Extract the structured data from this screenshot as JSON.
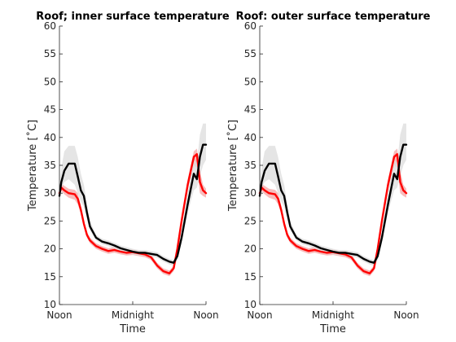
{
  "chart_data": [
    {
      "type": "line",
      "title": "Roof; inner surface temperature",
      "xlabel": "Time",
      "ylabel": "Temperature [˚C]",
      "ylim": [
        10,
        60
      ],
      "yticks": [
        10,
        15,
        20,
        25,
        30,
        35,
        40,
        45,
        50,
        55,
        60
      ],
      "xlim": [
        0,
        24
      ],
      "xticks": [
        {
          "x": 0,
          "label": "Noon"
        },
        {
          "x": 12,
          "label": "Midnight"
        },
        {
          "x": 24,
          "label": "Noon"
        }
      ],
      "grid": false,
      "legend": "none",
      "series": [
        {
          "color": "#ff0000",
          "band_color": "#f4a6a6",
          "x": [
            0,
            0.3,
            0.8,
            1.5,
            2.5,
            3.0,
            3.5,
            4.0,
            4.5,
            5.0,
            6.0,
            7.0,
            8.0,
            9.0,
            10.0,
            11.0,
            12.0,
            13.0,
            14.0,
            15.0,
            16.0,
            17.0,
            18.0,
            18.7,
            19.3,
            20.0,
            21.0,
            22.0,
            22.5,
            23.0,
            23.5,
            24.0
          ],
          "y": [
            30.0,
            31.0,
            30.5,
            30.0,
            29.8,
            29.0,
            27.0,
            24.5,
            22.5,
            21.5,
            20.5,
            20.0,
            19.6,
            19.8,
            19.5,
            19.3,
            19.4,
            19.2,
            19.0,
            18.5,
            17.0,
            16.0,
            15.6,
            16.5,
            20.0,
            25.0,
            31.5,
            36.5,
            37.0,
            32.0,
            30.5,
            30.0
          ],
          "lower": [
            29.3,
            30.4,
            29.8,
            29.2,
            28.8,
            28.0,
            26.3,
            23.9,
            22.0,
            21.0,
            20.0,
            19.5,
            19.1,
            19.3,
            19.0,
            18.8,
            18.9,
            18.7,
            18.5,
            18.0,
            16.5,
            15.5,
            15.1,
            16.0,
            19.4,
            24.4,
            30.5,
            35.0,
            34.5,
            30.0,
            29.5,
            29.2
          ],
          "upper": [
            30.8,
            31.7,
            31.3,
            30.8,
            30.6,
            30.0,
            27.8,
            25.1,
            23.0,
            22.0,
            21.0,
            20.5,
            20.1,
            20.3,
            20.0,
            19.8,
            19.9,
            19.7,
            19.5,
            19.0,
            17.5,
            16.5,
            16.1,
            17.0,
            20.6,
            25.6,
            32.5,
            37.5,
            38.0,
            34.0,
            31.5,
            30.8
          ]
        },
        {
          "color": "#000000",
          "band_color": "#dedede",
          "x": [
            0,
            0.3,
            0.8,
            1.5,
            2.5,
            3.0,
            3.5,
            4.0,
            4.5,
            5.0,
            6.0,
            7.0,
            8.0,
            9.0,
            10.0,
            11.0,
            12.0,
            13.0,
            14.0,
            15.0,
            16.0,
            17.0,
            18.0,
            18.7,
            19.3,
            20.0,
            21.0,
            22.0,
            22.5,
            23.0,
            23.5,
            24.0
          ],
          "y": [
            29.5,
            32.0,
            34.0,
            35.3,
            35.3,
            33.0,
            30.5,
            29.5,
            26.5,
            24.0,
            22.0,
            21.3,
            21.0,
            20.6,
            20.1,
            19.8,
            19.5,
            19.3,
            19.3,
            19.1,
            18.9,
            18.2,
            17.7,
            17.5,
            18.7,
            22.0,
            28.0,
            33.5,
            32.5,
            36.5,
            38.7,
            38.7
          ],
          "lower": [
            29.0,
            31.0,
            32.0,
            32.5,
            31.5,
            30.0,
            28.5,
            27.5,
            25.3,
            23.3,
            21.5,
            20.8,
            20.5,
            20.1,
            19.6,
            19.3,
            19.0,
            18.8,
            18.8,
            18.6,
            18.4,
            17.7,
            17.2,
            17.0,
            18.0,
            21.0,
            26.5,
            30.5,
            31.0,
            33.0,
            35.0,
            36.0
          ],
          "upper": [
            30.5,
            34.5,
            37.5,
            38.5,
            38.5,
            36.5,
            33.5,
            31.5,
            28.0,
            25.0,
            22.5,
            21.8,
            21.5,
            21.1,
            20.6,
            20.3,
            20.0,
            19.8,
            19.8,
            19.6,
            19.4,
            18.7,
            18.2,
            18.0,
            19.4,
            23.0,
            30.0,
            36.0,
            35.5,
            40.5,
            42.5,
            42.5
          ]
        }
      ]
    },
    {
      "type": "line",
      "title": "Roof: outer surface temperature",
      "xlabel": "Time",
      "ylabel": "Temperature [˚C]",
      "ylim": [
        10,
        60
      ],
      "yticks": [
        10,
        15,
        20,
        25,
        30,
        35,
        40,
        45,
        50,
        55,
        60
      ],
      "xlim": [
        0,
        24
      ],
      "xticks": [
        {
          "x": 0,
          "label": "Noon"
        },
        {
          "x": 12,
          "label": "Midnight"
        },
        {
          "x": 24,
          "label": "Noon"
        }
      ],
      "grid": false,
      "legend": "none",
      "series": [
        {
          "color": "#ff0000",
          "band_color": "#f4a6a6",
          "x": [
            0,
            0.3,
            0.8,
            1.5,
            2.5,
            3.0,
            3.5,
            4.0,
            4.5,
            5.0,
            6.0,
            7.0,
            8.0,
            9.0,
            10.0,
            11.0,
            12.0,
            13.0,
            14.0,
            15.0,
            16.0,
            17.0,
            18.0,
            18.7,
            19.3,
            20.0,
            21.0,
            22.0,
            22.5,
            23.0,
            23.5,
            24.0
          ],
          "y": [
            30.0,
            31.0,
            30.5,
            30.0,
            29.8,
            29.0,
            27.0,
            24.5,
            22.5,
            21.5,
            20.5,
            20.0,
            19.6,
            19.8,
            19.5,
            19.3,
            19.4,
            19.2,
            19.0,
            18.5,
            17.0,
            16.0,
            15.6,
            16.5,
            20.0,
            25.0,
            31.5,
            36.5,
            37.0,
            32.0,
            30.5,
            30.0
          ],
          "lower": [
            29.3,
            30.4,
            29.8,
            29.2,
            28.8,
            28.0,
            26.3,
            23.9,
            22.0,
            21.0,
            20.0,
            19.5,
            19.1,
            19.3,
            19.0,
            18.8,
            18.9,
            18.7,
            18.5,
            18.0,
            16.5,
            15.5,
            15.1,
            16.0,
            19.4,
            24.4,
            30.5,
            35.0,
            34.5,
            30.0,
            29.5,
            29.2
          ],
          "upper": [
            30.8,
            31.7,
            31.3,
            30.8,
            30.6,
            30.0,
            27.8,
            25.1,
            23.0,
            22.0,
            21.0,
            20.5,
            20.1,
            20.3,
            20.0,
            19.8,
            19.9,
            19.7,
            19.5,
            19.0,
            17.5,
            16.5,
            16.1,
            17.0,
            20.6,
            25.6,
            32.5,
            37.5,
            38.0,
            34.0,
            31.5,
            30.8
          ]
        },
        {
          "color": "#000000",
          "band_color": "#dedede",
          "x": [
            0,
            0.3,
            0.8,
            1.5,
            2.5,
            3.0,
            3.5,
            4.0,
            4.5,
            5.0,
            6.0,
            7.0,
            8.0,
            9.0,
            10.0,
            11.0,
            12.0,
            13.0,
            14.0,
            15.0,
            16.0,
            17.0,
            18.0,
            18.7,
            19.3,
            20.0,
            21.0,
            22.0,
            22.5,
            23.0,
            23.5,
            24.0
          ],
          "y": [
            29.5,
            32.0,
            34.0,
            35.3,
            35.3,
            33.0,
            30.5,
            29.5,
            26.5,
            24.0,
            22.0,
            21.3,
            21.0,
            20.6,
            20.1,
            19.8,
            19.5,
            19.3,
            19.3,
            19.1,
            18.9,
            18.2,
            17.7,
            17.5,
            18.7,
            22.0,
            28.0,
            33.5,
            32.5,
            36.5,
            38.7,
            38.7
          ],
          "lower": [
            29.0,
            31.0,
            32.0,
            32.5,
            31.5,
            30.0,
            28.5,
            27.5,
            25.3,
            23.3,
            21.5,
            20.8,
            20.5,
            20.1,
            19.6,
            19.3,
            19.0,
            18.8,
            18.8,
            18.6,
            18.4,
            17.7,
            17.2,
            17.0,
            18.0,
            21.0,
            26.5,
            30.5,
            31.0,
            33.0,
            35.0,
            36.0
          ],
          "upper": [
            30.5,
            34.5,
            37.5,
            38.5,
            38.5,
            36.5,
            33.5,
            31.5,
            28.0,
            25.0,
            22.5,
            21.8,
            21.5,
            21.1,
            20.6,
            20.3,
            20.0,
            19.8,
            19.8,
            19.6,
            19.4,
            18.7,
            18.2,
            18.0,
            19.4,
            23.0,
            30.0,
            36.0,
            35.5,
            40.5,
            42.5,
            42.5
          ]
        }
      ]
    }
  ]
}
